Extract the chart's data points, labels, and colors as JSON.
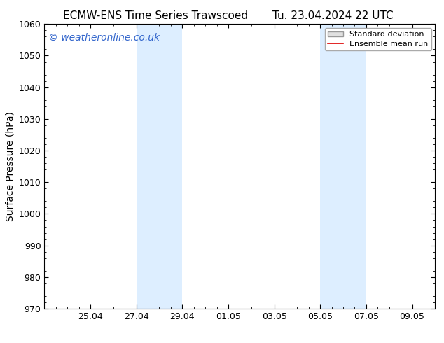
{
  "title_left": "ECMW-ENS Time Series Trawscoed",
  "title_right": "Tu. 23.04.2024 22 UTC",
  "ylabel": "Surface Pressure (hPa)",
  "ylim": [
    970,
    1060
  ],
  "yticks": [
    970,
    980,
    990,
    1000,
    1010,
    1020,
    1030,
    1040,
    1050,
    1060
  ],
  "xtick_labels": [
    "25.04",
    "27.04",
    "29.04",
    "01.05",
    "03.05",
    "05.05",
    "07.05",
    "09.05"
  ],
  "xtick_positions": [
    2,
    4,
    6,
    8,
    10,
    12,
    14,
    16
  ],
  "xlim": [
    0,
    17
  ],
  "shaded_bands": [
    {
      "x_start": 4,
      "x_end": 6,
      "color": "#ddeeff"
    },
    {
      "x_start": 12,
      "x_end": 14,
      "color": "#ddeeff"
    }
  ],
  "background_color": "#ffffff",
  "plot_bg_color": "#ffffff",
  "watermark_text": "© weatheronline.co.uk",
  "watermark_color": "#3366cc",
  "legend_items": [
    {
      "label": "Standard deviation",
      "type": "patch",
      "facecolor": "#e0e0e0",
      "edgecolor": "#999999"
    },
    {
      "label": "Ensemble mean run",
      "type": "line",
      "color": "#dd0000"
    }
  ],
  "title_fontsize": 11,
  "axis_label_fontsize": 10,
  "tick_fontsize": 9,
  "watermark_fontsize": 10,
  "legend_fontsize": 8
}
